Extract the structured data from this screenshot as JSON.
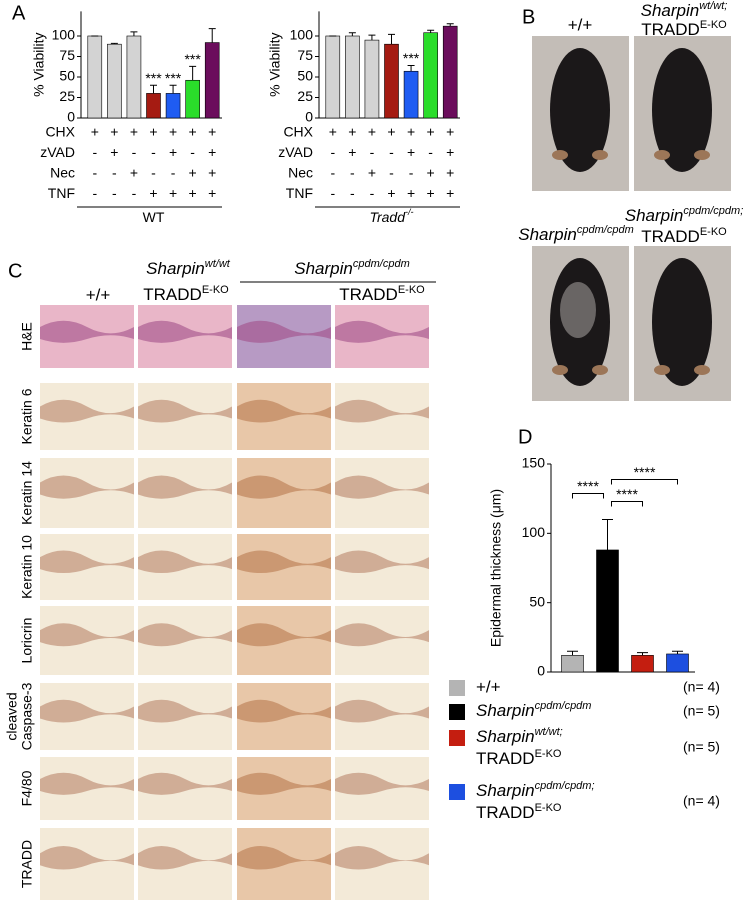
{
  "panel_labels": [
    "A",
    "B",
    "C",
    "D"
  ],
  "chart_data": [
    {
      "type": "bar",
      "ylabel": "% Viability",
      "ylim": [
        0,
        130
      ],
      "yticks": [
        0,
        25,
        50,
        75,
        100
      ],
      "values": [
        100,
        90,
        100,
        30,
        30,
        46,
        92
      ],
      "errors": [
        0,
        1,
        5,
        10,
        10,
        17,
        17
      ],
      "colors": [
        "#d3d3d3",
        "#d3d3d3",
        "#d3d3d3",
        "#a51b12",
        "#1f5cf2",
        "#2add2a",
        "#6b0d5c"
      ],
      "significance": [
        null,
        null,
        null,
        "***",
        "***",
        "***",
        null
      ],
      "conditions": [
        {
          "name": "CHX",
          "values": [
            "+",
            "+",
            "+",
            "+",
            "+",
            "+",
            "+"
          ]
        },
        {
          "name": "zVAD",
          "values": [
            "-",
            "+",
            "-",
            "-",
            "+",
            "-",
            "+"
          ]
        },
        {
          "name": "Nec",
          "values": [
            "-",
            "-",
            "+",
            "-",
            "-",
            "+",
            "+"
          ]
        },
        {
          "name": "TNF",
          "values": [
            "-",
            "-",
            "-",
            "+",
            "+",
            "+",
            "+"
          ]
        }
      ],
      "group_label": "WT"
    },
    {
      "type": "bar",
      "ylabel": "% Viability",
      "ylim": [
        0,
        130
      ],
      "yticks": [
        0,
        25,
        50,
        75,
        100
      ],
      "values": [
        100,
        100,
        95,
        90,
        57,
        104,
        112
      ],
      "errors": [
        0,
        4,
        6,
        12,
        7,
        3,
        3
      ],
      "colors": [
        "#d3d3d3",
        "#d3d3d3",
        "#d3d3d3",
        "#a51b12",
        "#1f5cf2",
        "#2add2a",
        "#6b0d5c"
      ],
      "significance": [
        null,
        null,
        null,
        null,
        "***",
        null,
        null
      ],
      "conditions": [
        {
          "name": "CHX",
          "values": [
            "+",
            "+",
            "+",
            "+",
            "+",
            "+",
            "+"
          ]
        },
        {
          "name": "zVAD",
          "values": [
            "-",
            "+",
            "-",
            "-",
            "+",
            "-",
            "+"
          ]
        },
        {
          "name": "Nec",
          "values": [
            "-",
            "-",
            "+",
            "-",
            "-",
            "+",
            "+"
          ]
        },
        {
          "name": "TNF",
          "values": [
            "-",
            "-",
            "-",
            "+",
            "+",
            "+",
            "+"
          ]
        }
      ],
      "group_label": "Tradd",
      "group_label_sup": "-/-",
      "group_label_style": "italic"
    },
    {
      "type": "bar",
      "ylabel": "Epidermal thickness (μm)",
      "ylim": [
        0,
        150
      ],
      "yticks": [
        0,
        50,
        100,
        150
      ],
      "series": [
        {
          "name": "+/+",
          "color": "#b4b4b4",
          "values": [
            12
          ],
          "errors": [
            3
          ],
          "n_label": "(n= 4)"
        },
        {
          "name": "Sharpin",
          "name_sup": "cpdm/cpdm",
          "color": "#000000",
          "values": [
            88
          ],
          "errors": [
            22
          ],
          "n_label": "(n= 5)"
        },
        {
          "name": "Sharpin",
          "name_sup": "wt/wt;",
          "name_line2": "TRADD",
          "name_line2_sup": "E-KO",
          "color": "#c41e10",
          "values": [
            12
          ],
          "errors": [
            2
          ],
          "n_label": "(n= 5)"
        },
        {
          "name": "Sharpin",
          "name_sup": "cpdm/cpdm;",
          "name_line2": "TRADD",
          "name_line2_sup": "E-KO",
          "color": "#1d4fe0",
          "values": [
            13
          ],
          "errors": [
            2
          ],
          "n_label": "(n= 4)"
        }
      ],
      "comparisons": [
        {
          "between": [
            0,
            1
          ],
          "label": "****"
        },
        {
          "between": [
            1,
            2
          ],
          "label": "****"
        },
        {
          "between": [
            1,
            3
          ],
          "label": "****"
        }
      ]
    }
  ],
  "panel_b": {
    "labels": [
      {
        "text": "+/+"
      },
      {
        "text": "Sharpin",
        "sup": "wt/wt;",
        "line2": "TRADD",
        "line2_sup": "E-KO"
      },
      {
        "text": "Sharpin",
        "sup": "cpdm/cpdm"
      },
      {
        "text": "Sharpin",
        "sup": "cpdm/cpdm;",
        "line2": "TRADD",
        "line2_sup": "E-KO"
      }
    ]
  },
  "panel_c": {
    "column_headers": {
      "wt": "+/+",
      "tradd_text": "Sharpin",
      "tradd_sup": "wt/wt",
      "tradd_line2": "TRADD",
      "tradd_line2_sup": "E-KO",
      "cpdm_text": "Sharpin",
      "cpdm_sup": "cpdm/cpdm",
      "cpdm_tradd": "TRADD",
      "cpdm_tradd_sup": "E-KO"
    },
    "row_labels": [
      [
        "H&E"
      ],
      [
        "Keratin 6"
      ],
      [
        "Keratin 14"
      ],
      [
        "Keratin 10"
      ],
      [
        "Loricrin"
      ],
      [
        "cleaved",
        "Caspase-3"
      ],
      [
        "F4/80"
      ],
      [
        "TRADD"
      ]
    ]
  }
}
